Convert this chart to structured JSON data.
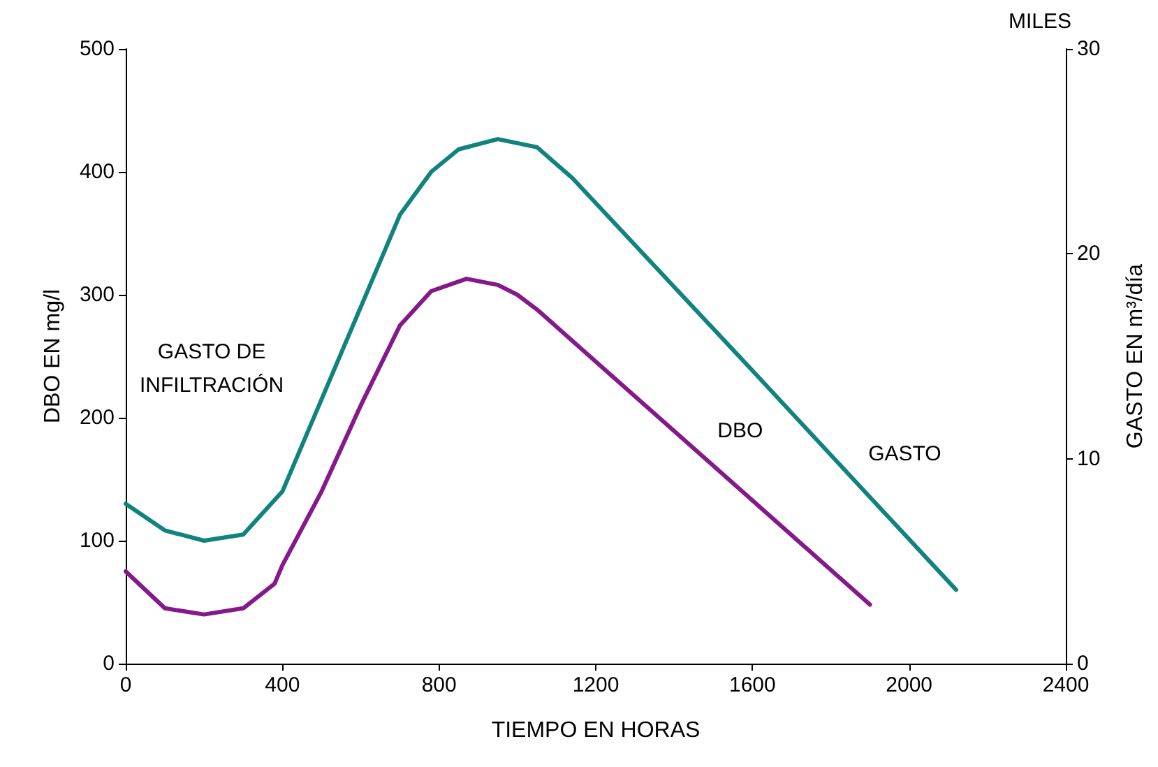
{
  "chart_data": {
    "type": "line",
    "xlabel": "TIEMPO EN HORAS",
    "ylabel": "DBO EN mg/l",
    "y2label": "GASTO EN m³/día",
    "annotations": [
      "GASTO DE\nINFILTRACIÓN",
      "MILES"
    ],
    "xlim": [
      0,
      2400
    ],
    "xticks": [
      0,
      400,
      800,
      1200,
      1600,
      2000,
      2400
    ],
    "ylim": [
      0,
      500
    ],
    "yticks": [
      0,
      100,
      200,
      300,
      400,
      500
    ],
    "y2lim": [
      0,
      30
    ],
    "y2ticks": [
      0,
      10,
      20,
      30
    ],
    "grid": false,
    "legend": false,
    "marker": "none",
    "line_style": "solid",
    "series": [
      {
        "name": "GASTO",
        "color": "#11837f",
        "axis": "y2",
        "x": [
          0,
          100,
          200,
          300,
          400,
          500,
          600,
          700,
          780,
          850,
          950,
          1050,
          1140,
          1600,
          2120
        ],
        "values": [
          7.8,
          6.5,
          6.0,
          6.3,
          8.4,
          12.9,
          17.4,
          21.9,
          24.0,
          25.1,
          25.6,
          25.2,
          23.7,
          14.3,
          3.6
        ]
      },
      {
        "name": "DBO",
        "color": "#85188a",
        "x": [
          0,
          100,
          200,
          300,
          380,
          400,
          500,
          600,
          700,
          780,
          870,
          950,
          1000,
          1050,
          1900
        ],
        "values": [
          75,
          45,
          40,
          45,
          65,
          80,
          140,
          210,
          275,
          303,
          313,
          308,
          300,
          288,
          48
        ]
      }
    ]
  }
}
